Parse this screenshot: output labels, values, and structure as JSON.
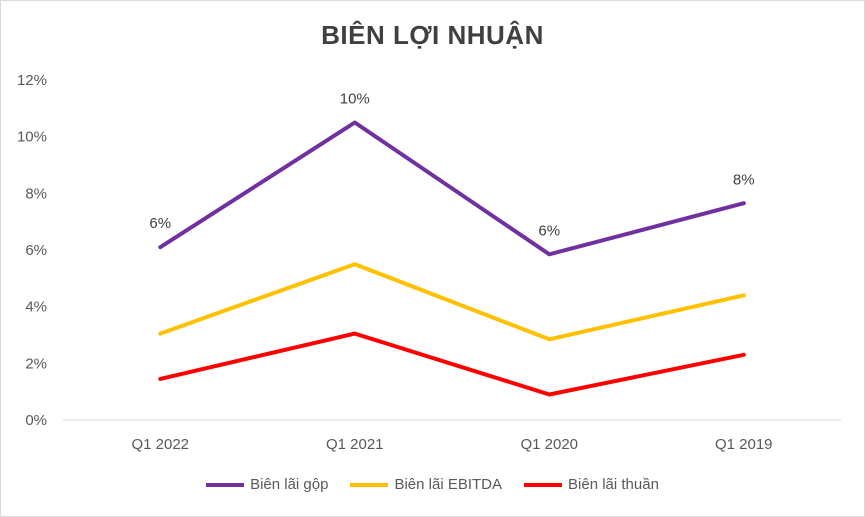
{
  "chart_data": {
    "type": "line",
    "title": "BIÊN LỢI NHUẬN",
    "categories": [
      "Q1 2022",
      "Q1 2021",
      "Q1 2020",
      "Q1 2019"
    ],
    "y_ticks": [
      "0%",
      "2%",
      "4%",
      "6%",
      "8%",
      "10%",
      "12%"
    ],
    "ylim": [
      0,
      12
    ],
    "grid": false,
    "legend_position": "bottom",
    "series": [
      {
        "name": "Biên lãi gộp",
        "color": "#7030a0",
        "values": [
          6.1,
          10.5,
          5.85,
          7.65
        ],
        "data_labels": [
          "6%",
          "10%",
          "6%",
          "8%"
        ]
      },
      {
        "name": "Biên lãi EBITDA",
        "color": "#ffc000",
        "values": [
          3.05,
          5.5,
          2.85,
          4.4
        ]
      },
      {
        "name": "Biên lãi thuần",
        "color": "#ff0000",
        "values": [
          1.45,
          3.05,
          0.9,
          2.3
        ]
      }
    ]
  }
}
